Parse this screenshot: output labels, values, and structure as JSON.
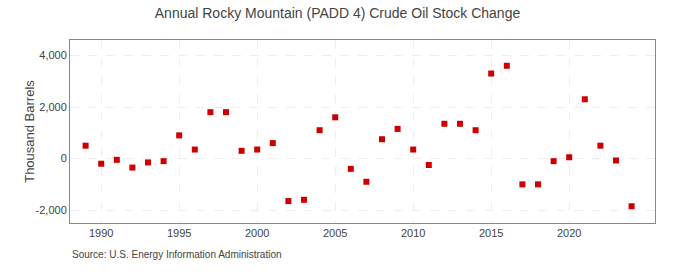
{
  "chart_data": {
    "type": "scatter",
    "title": "Annual Rocky Mountain (PADD 4) Crude Oil Stock Change",
    "ylabel": "Thousand Barrels",
    "source": "Source: U.S. Energy Information Administration",
    "x": [
      1989,
      1990,
      1991,
      1992,
      1993,
      1994,
      1995,
      1996,
      1997,
      1998,
      1999,
      2000,
      2001,
      2002,
      2003,
      2004,
      2005,
      2006,
      2007,
      2008,
      2009,
      2010,
      2011,
      2012,
      2013,
      2014,
      2015,
      2016,
      2017,
      2018,
      2019,
      2020,
      2021,
      2022,
      2023,
      2024
    ],
    "values": [
      500,
      -200,
      -50,
      -350,
      -150,
      -100,
      900,
      350,
      1800,
      1800,
      300,
      350,
      600,
      -1650,
      -1600,
      1100,
      1600,
      -400,
      -900,
      750,
      1150,
      350,
      -250,
      1350,
      1350,
      1100,
      3300,
      3600,
      -1000,
      -1000,
      -100,
      50,
      2300,
      500,
      -75,
      -1850
    ],
    "color": "#cc0000",
    "marker": "square",
    "xlim": [
      1988.0,
      2025.5
    ],
    "xticks": [
      1990,
      1995,
      2000,
      2005,
      2010,
      2015,
      2020
    ],
    "ylim": [
      -2500,
      4600
    ],
    "yticks": [
      {
        "value": -2000,
        "label": "-2,000"
      },
      0,
      {
        "value": 2000,
        "label": "2,000"
      },
      {
        "value": 4000,
        "label": "4,000"
      }
    ],
    "grid": true
  }
}
